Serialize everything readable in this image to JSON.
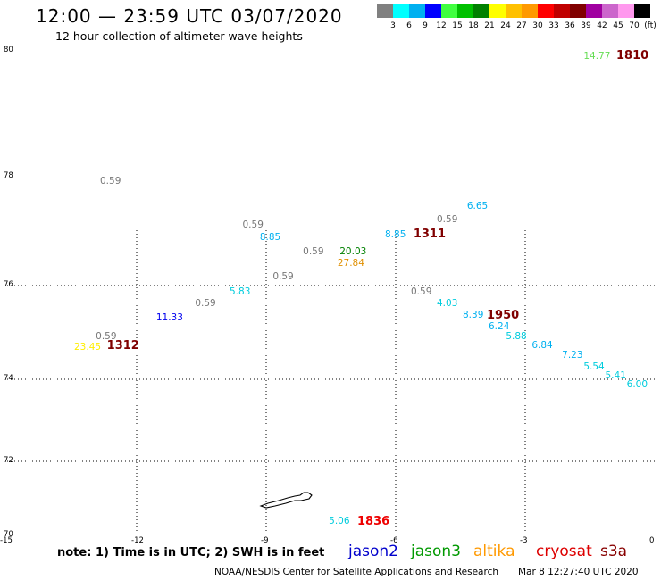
{
  "header": {
    "title": "12:00 — 23:59 UTC 03/07/2020",
    "subtitle": "12 hour collection of altimeter wave heights"
  },
  "colorbar": {
    "colors": [
      "#808080",
      "#00ffff",
      "#00b0f0",
      "#0000ff",
      "#40ff40",
      "#00c000",
      "#008000",
      "#ffff00",
      "#ffc000",
      "#ff9900",
      "#ff0000",
      "#c00000",
      "#800000",
      "#a000a0",
      "#cc66cc",
      "#ff99ee",
      "#000000"
    ],
    "labels": [
      "3",
      "6",
      "9",
      "12",
      "15",
      "18",
      "21",
      "24",
      "27",
      "30",
      "33",
      "36",
      "39",
      "42",
      "45",
      "70",
      "(ft)"
    ]
  },
  "axes": {
    "y_labels": [
      "80",
      "78",
      "76",
      "74",
      "72",
      "70"
    ],
    "x_labels": [
      "-15",
      "-12",
      "-9",
      "-6",
      "-3",
      "0"
    ]
  },
  "observations": [
    {
      "text": "14.77",
      "color": "#66dd55",
      "lon": -1.4,
      "lat": 79.9
    },
    {
      "text": "0.59",
      "color": "#777777",
      "lon": -12.6,
      "lat": 77.9
    },
    {
      "text": "6.65",
      "color": "#00b0f0",
      "lon": -4.1,
      "lat": 77.45
    },
    {
      "text": "0.59",
      "color": "#777777",
      "lon": -4.8,
      "lat": 77.2
    },
    {
      "text": "0.59",
      "color": "#777777",
      "lon": -9.3,
      "lat": 77.1
    },
    {
      "text": "8.85",
      "color": "#00b0f0",
      "lon": -8.9,
      "lat": 76.87
    },
    {
      "text": "8.85",
      "color": "#00b0f0",
      "lon": -6.0,
      "lat": 76.91
    },
    {
      "text": "0.59",
      "color": "#777777",
      "lon": -7.9,
      "lat": 76.6
    },
    {
      "text": "20.03",
      "color": "#008000",
      "lon": -7.05,
      "lat": 76.6
    },
    {
      "text": "27.84",
      "color": "#e09000",
      "lon": -7.1,
      "lat": 76.4
    },
    {
      "text": "0.59",
      "color": "#777777",
      "lon": -8.6,
      "lat": 76.15
    },
    {
      "text": "5.83",
      "color": "#00ccdd",
      "lon": -9.6,
      "lat": 75.85
    },
    {
      "text": "0.59",
      "color": "#777777",
      "lon": -5.4,
      "lat": 75.85
    },
    {
      "text": "0.59",
      "color": "#777777",
      "lon": -10.4,
      "lat": 75.6
    },
    {
      "text": "4.03",
      "color": "#00ccdd",
      "lon": -4.8,
      "lat": 75.6
    },
    {
      "text": "11.33",
      "color": "#0000ee",
      "lon": -11.3,
      "lat": 75.3
    },
    {
      "text": "8.39",
      "color": "#00b0f0",
      "lon": -4.2,
      "lat": 75.35
    },
    {
      "text": "6.24",
      "color": "#00b0f0",
      "lon": -3.6,
      "lat": 75.1
    },
    {
      "text": "5.88",
      "color": "#00ccdd",
      "lon": -3.2,
      "lat": 74.9
    },
    {
      "text": "6.84",
      "color": "#00b0f0",
      "lon": -2.6,
      "lat": 74.7
    },
    {
      "text": "0.59",
      "color": "#777777",
      "lon": -12.7,
      "lat": 74.9
    },
    {
      "text": "23.45",
      "color": "#ffee00",
      "lon": -13.2,
      "lat": 74.67
    },
    {
      "text": "7.23",
      "color": "#00b0f0",
      "lon": -1.9,
      "lat": 74.5
    },
    {
      "text": "5.54",
      "color": "#00ccdd",
      "lon": -1.4,
      "lat": 74.25
    },
    {
      "text": "5.41",
      "color": "#00ccdd",
      "lon": -0.9,
      "lat": 74.05
    },
    {
      "text": "6.00",
      "color": "#00ccdd",
      "lon": -0.4,
      "lat": 73.85
    },
    {
      "text": "5.06",
      "color": "#00ccdd",
      "lon": -7.3,
      "lat": 70.35
    }
  ],
  "passes": [
    {
      "text": "1810",
      "color": "#800000",
      "lon": -0.6,
      "lat": 79.92
    },
    {
      "text": "1311",
      "color": "#800000",
      "lon": -5.3,
      "lat": 76.93
    },
    {
      "text": "1950",
      "color": "#800000",
      "lon": -3.6,
      "lat": 75.35
    },
    {
      "text": "1312",
      "color": "#800000",
      "lon": -12.4,
      "lat": 74.7
    },
    {
      "text": "1836",
      "color": "#ee0000",
      "lon": -6.6,
      "lat": 70.36
    }
  ],
  "note": "note:  1) Time is in UTC;  2) SWH is in feet",
  "satellites": [
    {
      "name": "jason2",
      "color": "#0000cc"
    },
    {
      "name": "jason3",
      "color": "#009900"
    },
    {
      "name": "altika",
      "color": "#ff9900"
    },
    {
      "name": "cryosat",
      "color": "#dd0000"
    },
    {
      "name": "s3a",
      "color": "#880000"
    }
  ],
  "footer": {
    "credit": "NOAA/NESDIS Center for Satellite Applications and Research",
    "date": "Mar  8 12:27:40 UTC 2020"
  }
}
